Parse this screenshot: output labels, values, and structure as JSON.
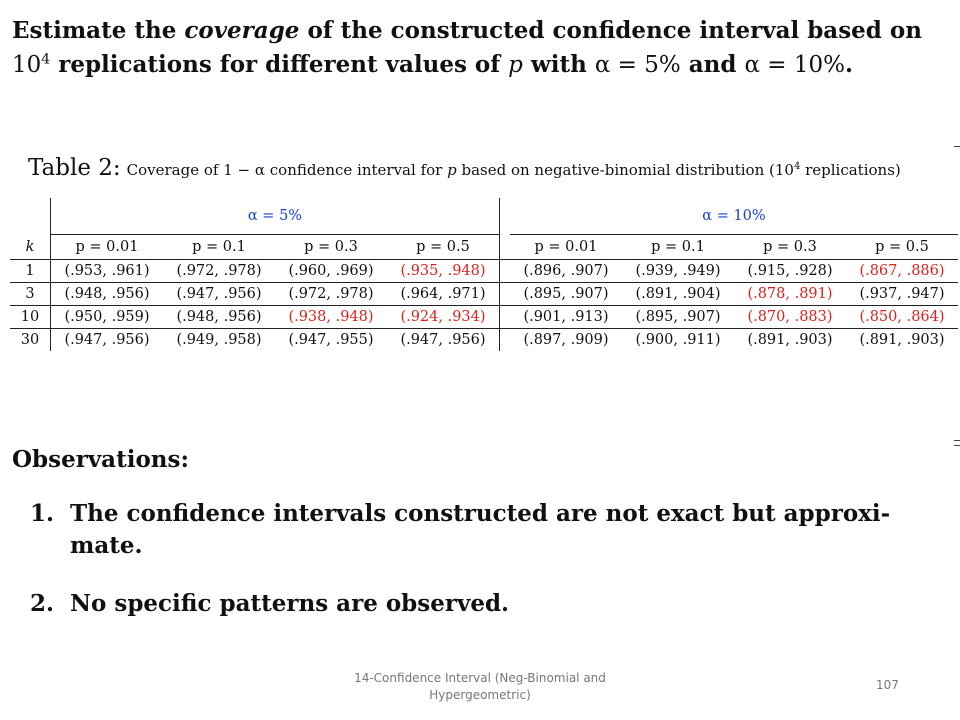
{
  "heading": {
    "part1": "Estimate the ",
    "coverage": "coverage",
    "part2": " of the constructed confidence interval based on ",
    "ten": "10",
    "exp": "4",
    "part3": " replications for different values of ",
    "p": "p",
    "part4": " with ",
    "alpha5": "α = 5%",
    "and": " and ",
    "alpha10": "α = 10%",
    "end": "."
  },
  "table": {
    "caption_label": "Table 2:",
    "caption_text_a": "Coverage of 1 − α confidence interval for ",
    "caption_p": "p",
    "caption_text_b": " based on negative-binomial distribution (10",
    "caption_exp": "4",
    "caption_text_c": " replications)",
    "alpha_groups": [
      "α = 5%",
      "α = 10%"
    ],
    "k_header": "k",
    "p_headers": [
      "p = 0.01",
      "p = 0.1",
      "p = 0.3",
      "p = 0.5",
      "p = 0.01",
      "p = 0.1",
      "p = 0.3",
      "p = 0.5"
    ],
    "rows": [
      {
        "k": "1",
        "cells": [
          [
            "(.953, .961)",
            false
          ],
          [
            "(.972, .978)",
            false
          ],
          [
            "(.960, .969)",
            false
          ],
          [
            "(.935, .948)",
            true
          ],
          [
            "(.896, .907)",
            false
          ],
          [
            "(.939, .949)",
            false
          ],
          [
            "(.915, .928)",
            false
          ],
          [
            "(.867, .886)",
            true
          ]
        ]
      },
      {
        "k": "3",
        "cells": [
          [
            "(.948, .956)",
            false
          ],
          [
            "(.947, .956)",
            false
          ],
          [
            "(.972, .978)",
            false
          ],
          [
            "(.964, .971)",
            false
          ],
          [
            "(.895, .907)",
            false
          ],
          [
            "(.891, .904)",
            false
          ],
          [
            "(.878, .891)",
            true
          ],
          [
            "(.937, .947)",
            false
          ]
        ]
      },
      {
        "k": "10",
        "cells": [
          [
            "(.950, .959)",
            false
          ],
          [
            "(.948, .956)",
            false
          ],
          [
            "(.938, .948)",
            true
          ],
          [
            "(.924, .934)",
            true
          ],
          [
            "(.901, .913)",
            false
          ],
          [
            "(.895, .907)",
            false
          ],
          [
            "(.870, .883)",
            true
          ],
          [
            "(.850, .864)",
            true
          ]
        ]
      },
      {
        "k": "30",
        "cells": [
          [
            "(.947, .956)",
            false
          ],
          [
            "(.949, .958)",
            false
          ],
          [
            "(.947, .955)",
            false
          ],
          [
            "(.947, .956)",
            false
          ],
          [
            "(.897, .909)",
            false
          ],
          [
            "(.900, .911)",
            false
          ],
          [
            "(.891, .903)",
            false
          ],
          [
            "(.891, .903)",
            false
          ]
        ]
      }
    ],
    "highlight_color": "#e0201c",
    "alpha_color": "#1a3fd6"
  },
  "observations": {
    "title": "Observations:",
    "items": [
      {
        "num": "1.",
        "text": "The confidence intervals constructed are not exact but approxi- mate."
      },
      {
        "num": "2.",
        "text": "No specific patterns are observed."
      }
    ]
  },
  "footer": {
    "line1": "14-Confidence Interval (Neg-Binomial and",
    "line2": "Hypergeometric)",
    "page": "107"
  }
}
